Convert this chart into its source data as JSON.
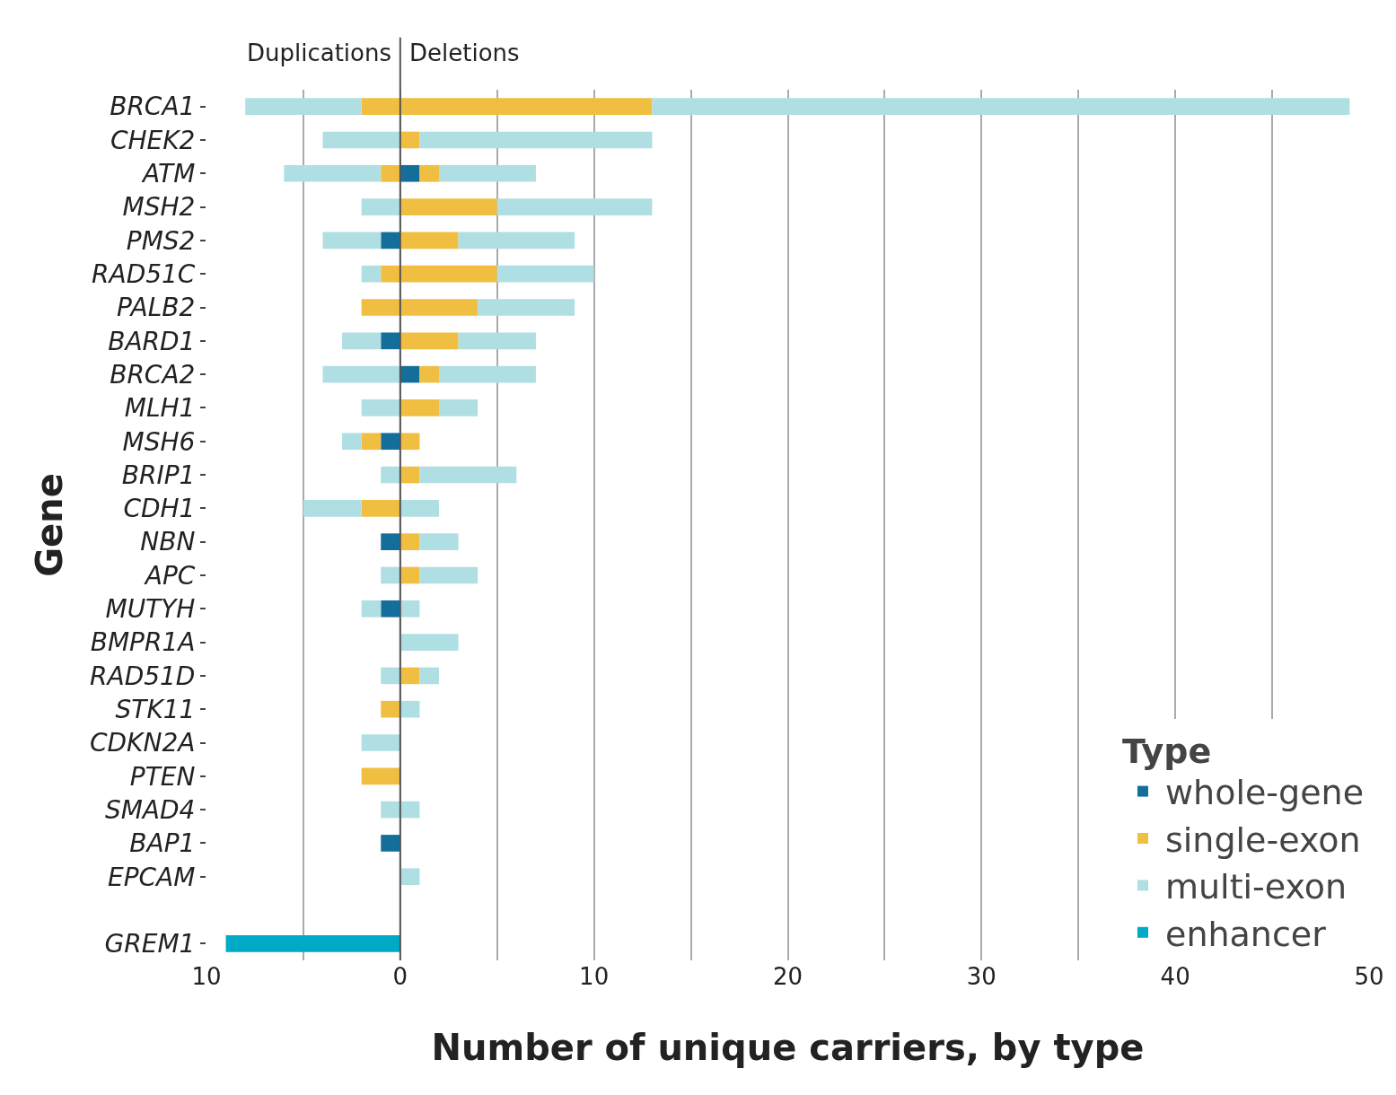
{
  "chart_data": {
    "type": "bar",
    "orientation": "horizontal",
    "stacked": true,
    "xlabel": "Number of unique carriers, by type",
    "ylabel": "Gene",
    "legend_title": "Type",
    "annotations": [
      "Duplications",
      "Deletions"
    ],
    "categories": [
      "BRCA1",
      "CHEK2",
      "ATM",
      "MSH2",
      "PMS2",
      "RAD51C",
      "PALB2",
      "BARD1",
      "BRCA2",
      "MLH1",
      "MSH6",
      "BRIP1",
      "CDH1",
      "NBN",
      "APC",
      "MUTYH",
      "BMPR1A",
      "RAD51D",
      "STK11",
      "CDKN2A",
      "PTEN",
      "SMAD4",
      "BAP1",
      "EPCAM",
      null,
      "GREM1"
    ],
    "series": [
      {
        "name": "whole-gene",
        "color": "#136e9b",
        "values": [
          null,
          null,
          1,
          null,
          null,
          null,
          null,
          null,
          1,
          null,
          null,
          null,
          null,
          null,
          null,
          null,
          null,
          null,
          null,
          null,
          null,
          null,
          null,
          null,
          null,
          null
        ]
      },
      {
        "color": "#136e9b",
        "values": [
          null,
          null,
          null,
          null,
          -1,
          null,
          null,
          -1,
          null,
          null,
          -1,
          null,
          null,
          -1,
          null,
          -1,
          null,
          null,
          null,
          null,
          null,
          null,
          -1,
          null,
          null,
          null
        ]
      },
      {
        "name": "single-exon",
        "color": "#f0bf41",
        "values": [
          13,
          1,
          1,
          5,
          3,
          5,
          4,
          3,
          1,
          2,
          1,
          1,
          null,
          1,
          1,
          null,
          null,
          1,
          null,
          null,
          null,
          null,
          null,
          null,
          null,
          null
        ]
      },
      {
        "color": "#f0bf41",
        "values": [
          -2,
          null,
          -1,
          null,
          null,
          -1,
          -2,
          null,
          null,
          null,
          -1,
          null,
          -2,
          null,
          null,
          null,
          null,
          null,
          -1,
          null,
          -2,
          null,
          null,
          null,
          null,
          null
        ]
      },
      {
        "name": "multi-exon",
        "color": "#afdfe3",
        "values": [
          36,
          12,
          5,
          8,
          6,
          5,
          5,
          4,
          5,
          2,
          null,
          5,
          2,
          2,
          3,
          1,
          3,
          1,
          1,
          null,
          null,
          1,
          null,
          1,
          null,
          null
        ]
      },
      {
        "color": "#afdfe3",
        "values": [
          -6,
          -4,
          -5,
          -2,
          -3,
          -1,
          null,
          -2,
          -4,
          -2,
          -1,
          -1,
          -3,
          null,
          -1,
          -1,
          null,
          -1,
          null,
          -2,
          null,
          -1,
          null,
          null,
          null,
          null
        ]
      },
      {
        "name": "enhancer",
        "color": "#00a9c6",
        "values": [
          null,
          null,
          null,
          null,
          null,
          null,
          null,
          null,
          null,
          null,
          null,
          null,
          null,
          null,
          null,
          null,
          null,
          null,
          null,
          null,
          null,
          null,
          null,
          null,
          null,
          -9
        ]
      }
    ],
    "xlim": [
      -10,
      50
    ],
    "xticks": [
      {
        "value": -10,
        "label": "10"
      },
      {
        "value": -5,
        "label": null
      },
      0,
      {
        "value": 5,
        "label": null
      },
      10,
      {
        "value": 15,
        "label": null
      },
      20,
      {
        "value": 25,
        "label": null
      },
      30,
      {
        "value": 35,
        "label": null
      },
      40,
      {
        "value": 45,
        "label": null
      },
      50
    ],
    "ref_lines": [
      {
        "axis": "x",
        "value": 0,
        "color": "#555555"
      }
    ],
    "grid": "x",
    "legend": "bottom right"
  }
}
